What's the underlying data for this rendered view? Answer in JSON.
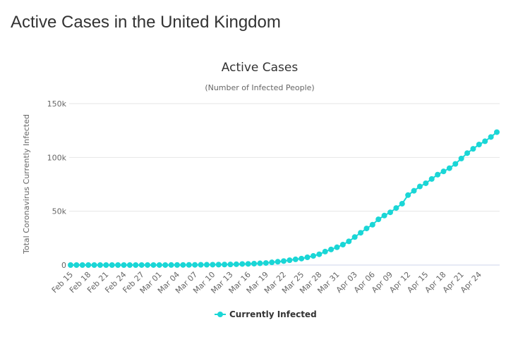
{
  "page": {
    "title": "Active Cases in the United Kingdom"
  },
  "colors": {
    "series": "#1ad6d6",
    "grid": "#e6e6e6",
    "axis": "#ccd6eb"
  },
  "chart_data": {
    "type": "line",
    "title": "Active Cases",
    "subtitle": "(Number of Infected People)",
    "xlabel": "",
    "ylabel": "Total Coronavirus Currently Infected",
    "ylim": [
      0,
      150000
    ],
    "y_ticks": [
      0,
      50000,
      100000,
      150000
    ],
    "y_tick_labels": [
      "0",
      "50k",
      "100k",
      "150k"
    ],
    "x_tick_labels": [
      "Feb 15",
      "Feb 18",
      "Feb 21",
      "Feb 24",
      "Feb 27",
      "Mar 01",
      "Mar 04",
      "Mar 07",
      "Mar 10",
      "Mar 13",
      "Mar 16",
      "Mar 19",
      "Mar 22",
      "Mar 25",
      "Mar 28",
      "Mar 31",
      "Apr 03",
      "Apr 06",
      "Apr 09",
      "Apr 12",
      "Apr 15",
      "Apr 18",
      "Apr 21",
      "Apr 24"
    ],
    "x_tick_every": 3,
    "grid": true,
    "legend_position": "bottom-center",
    "series": [
      {
        "name": "Currently Infected",
        "values": [
          8,
          8,
          8,
          8,
          8,
          8,
          8,
          8,
          8,
          8,
          8,
          8,
          12,
          14,
          19,
          29,
          32,
          44,
          80,
          100,
          158,
          200,
          250,
          300,
          350,
          400,
          500,
          580,
          750,
          1000,
          1100,
          1300,
          1600,
          1900,
          2500,
          3100,
          3700,
          4500,
          5300,
          6000,
          7200,
          8500,
          10000,
          12500,
          14500,
          16500,
          19000,
          22000,
          26000,
          30000,
          34000,
          37500,
          42500,
          46000,
          49000,
          53000,
          57000,
          65000,
          69000,
          73000,
          76000,
          80000,
          84000,
          87000,
          90000,
          94000,
          99000,
          104000,
          108000,
          112000,
          115000,
          119000,
          123500
        ]
      }
    ]
  }
}
